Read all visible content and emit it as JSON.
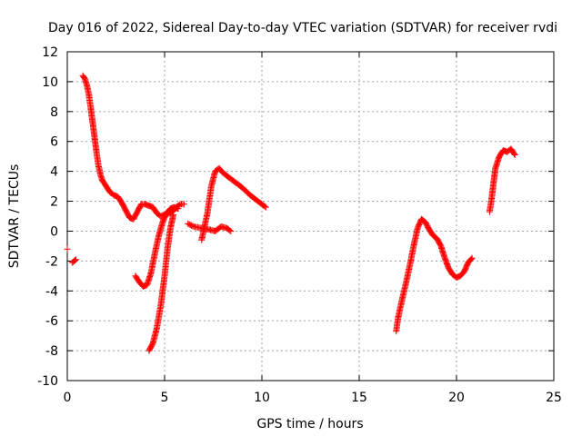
{
  "chart_data": {
    "type": "scatter",
    "title": "Day 016 of 2022, Sidereal Day-to-day VTEC variation (SDTVAR) for receiver rvdi",
    "xlabel": "GPS time / hours",
    "ylabel": "SDTVAR / TECUs",
    "xlim": [
      0,
      25
    ],
    "ylim": [
      -10,
      12
    ],
    "xticks": [
      "0",
      "5",
      "10",
      "15",
      "20",
      "25"
    ],
    "yticks": [
      "-10",
      "-8",
      "-6",
      "-4",
      "-2",
      "0",
      "2",
      "4",
      "6",
      "8",
      "10",
      "12"
    ],
    "grid": true,
    "marker": "+",
    "color": "#ff0000",
    "segments": [
      [
        [
          0.0,
          -1.2
        ]
      ],
      [
        [
          0.25,
          -2.1
        ],
        [
          0.35,
          -2.0
        ],
        [
          0.45,
          -1.9
        ]
      ],
      [
        [
          0.8,
          10.4
        ],
        [
          0.9,
          10.2
        ],
        [
          1.0,
          9.8
        ],
        [
          1.1,
          9.2
        ],
        [
          1.2,
          8.3
        ],
        [
          1.3,
          7.3
        ],
        [
          1.4,
          6.3
        ],
        [
          1.5,
          5.3
        ],
        [
          1.6,
          4.4
        ],
        [
          1.7,
          3.8
        ],
        [
          1.8,
          3.4
        ],
        [
          2.0,
          3.0
        ],
        [
          2.2,
          2.6
        ],
        [
          2.4,
          2.4
        ],
        [
          2.6,
          2.3
        ],
        [
          2.8,
          1.9
        ],
        [
          3.0,
          1.4
        ],
        [
          3.2,
          0.9
        ],
        [
          3.4,
          0.8
        ],
        [
          3.6,
          1.3
        ],
        [
          3.8,
          1.8
        ],
        [
          4.0,
          1.8
        ],
        [
          4.2,
          1.7
        ],
        [
          4.4,
          1.6
        ],
        [
          4.6,
          1.2
        ],
        [
          4.8,
          1.0
        ],
        [
          5.0,
          1.1
        ],
        [
          5.2,
          1.2
        ],
        [
          5.4,
          1.3
        ],
        [
          5.6,
          1.6
        ],
        [
          5.8,
          1.8
        ],
        [
          6.0,
          1.8
        ]
      ],
      [
        [
          3.5,
          -3.0
        ],
        [
          3.7,
          -3.4
        ],
        [
          3.9,
          -3.7
        ],
        [
          4.1,
          -3.6
        ],
        [
          4.3,
          -2.8
        ],
        [
          4.5,
          -1.5
        ],
        [
          4.7,
          -0.3
        ],
        [
          4.9,
          0.6
        ],
        [
          5.1,
          1.2
        ],
        [
          5.3,
          1.5
        ],
        [
          5.5,
          1.6
        ],
        [
          5.7,
          1.5
        ]
      ],
      [
        [
          4.2,
          -8.0
        ],
        [
          4.4,
          -7.5
        ],
        [
          4.6,
          -6.5
        ],
        [
          4.8,
          -5.0
        ],
        [
          5.0,
          -3.0
        ],
        [
          5.15,
          -1.2
        ],
        [
          5.3,
          0.2
        ],
        [
          5.45,
          1.1
        ]
      ],
      [
        [
          6.2,
          0.5
        ],
        [
          6.5,
          0.3
        ],
        [
          6.9,
          0.2
        ],
        [
          7.3,
          0.1
        ],
        [
          7.6,
          0.0
        ],
        [
          7.9,
          0.3
        ],
        [
          8.2,
          0.2
        ],
        [
          8.4,
          0.0
        ]
      ],
      [
        [
          6.9,
          -0.6
        ],
        [
          7.0,
          0.0
        ],
        [
          7.2,
          1.2
        ],
        [
          7.4,
          3.0
        ],
        [
          7.6,
          4.0
        ],
        [
          7.8,
          4.2
        ],
        [
          8.0,
          3.9
        ],
        [
          8.3,
          3.6
        ],
        [
          8.6,
          3.3
        ],
        [
          9.0,
          2.9
        ],
        [
          9.4,
          2.4
        ],
        [
          9.8,
          2.0
        ],
        [
          10.2,
          1.6
        ]
      ],
      [
        [
          16.9,
          -6.7
        ],
        [
          17.0,
          -5.8
        ],
        [
          17.2,
          -4.6
        ],
        [
          17.4,
          -3.5
        ],
        [
          17.6,
          -2.3
        ],
        [
          17.8,
          -1.0
        ],
        [
          18.0,
          0.2
        ],
        [
          18.2,
          0.8
        ],
        [
          18.4,
          0.6
        ],
        [
          18.6,
          0.1
        ],
        [
          18.8,
          -0.3
        ],
        [
          19.0,
          -0.5
        ],
        [
          19.2,
          -1.0
        ],
        [
          19.4,
          -1.8
        ],
        [
          19.6,
          -2.5
        ],
        [
          19.8,
          -2.9
        ],
        [
          20.0,
          -3.1
        ],
        [
          20.2,
          -3.0
        ],
        [
          20.4,
          -2.7
        ],
        [
          20.6,
          -2.1
        ],
        [
          20.8,
          -1.8
        ]
      ],
      [
        [
          21.7,
          1.3
        ],
        [
          21.8,
          2.1
        ],
        [
          21.9,
          3.2
        ],
        [
          22.0,
          4.2
        ],
        [
          22.2,
          5.0
        ],
        [
          22.4,
          5.4
        ],
        [
          22.6,
          5.3
        ],
        [
          22.8,
          5.5
        ],
        [
          23.0,
          5.1
        ]
      ]
    ]
  }
}
